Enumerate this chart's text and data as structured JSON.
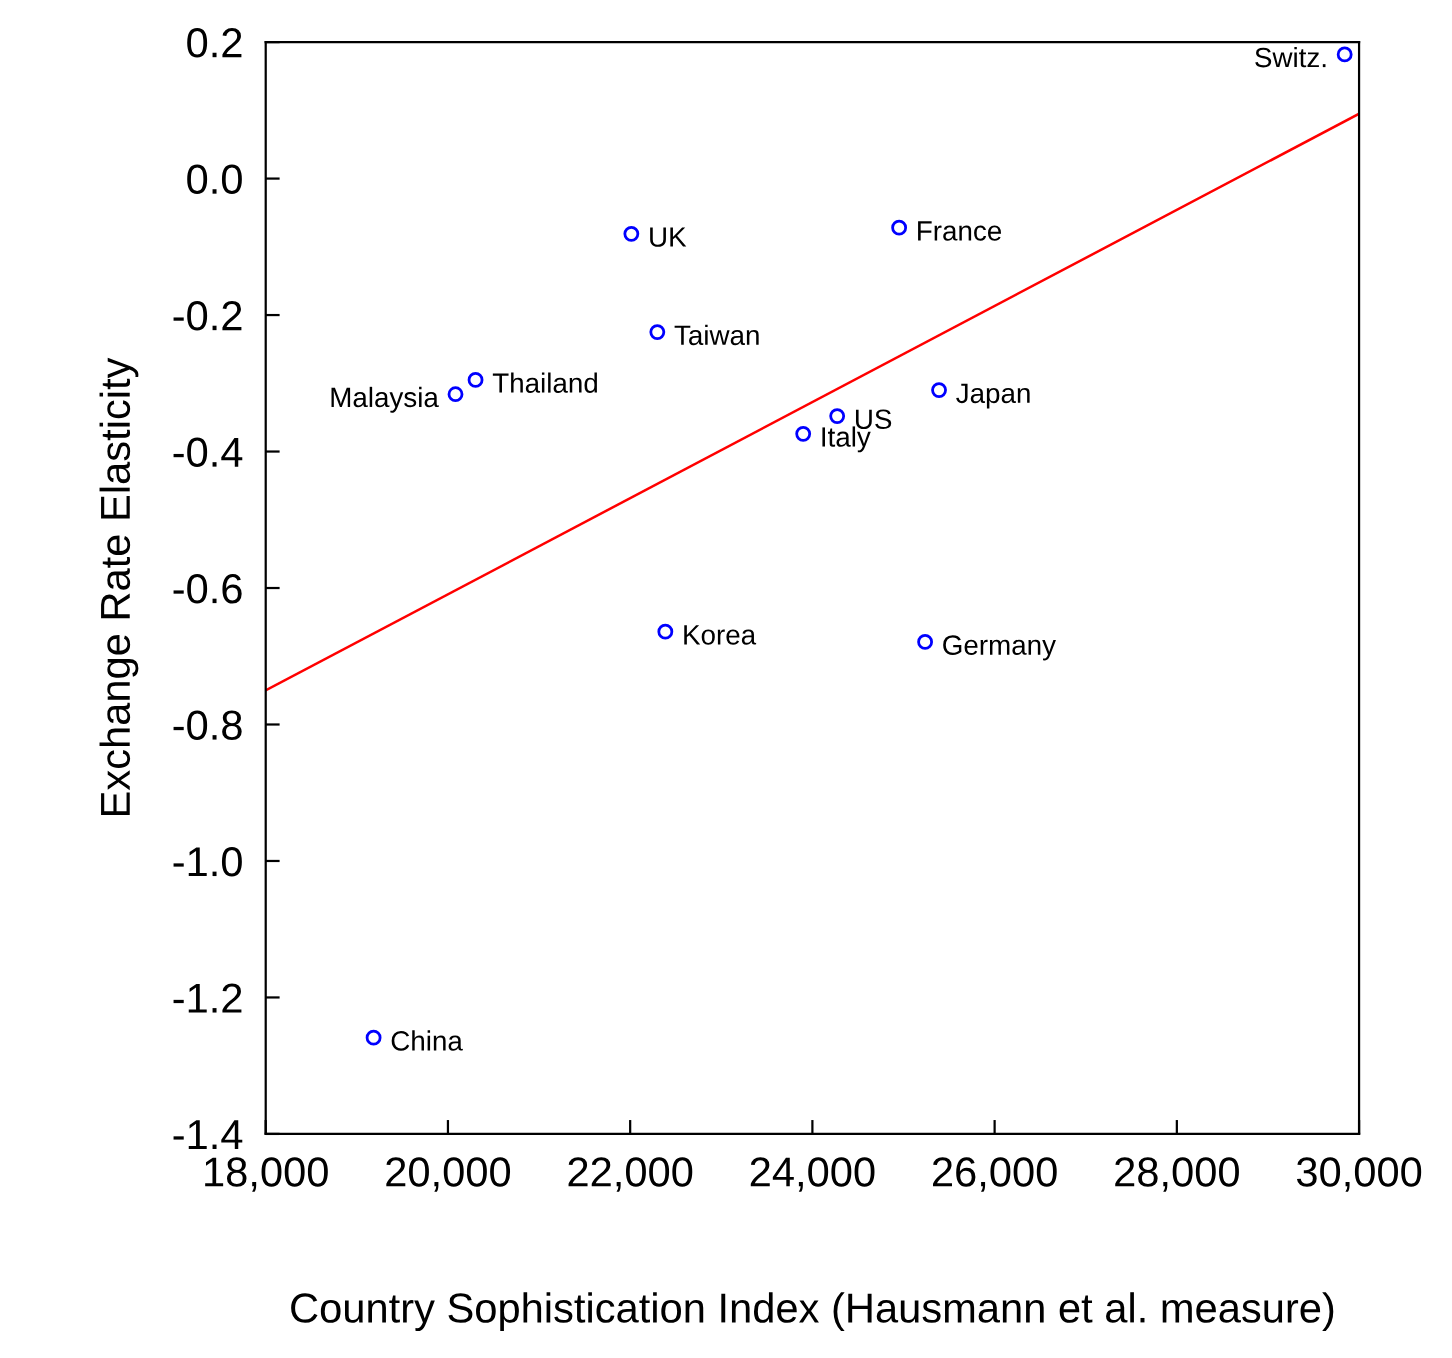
{
  "chart_data": {
    "type": "scatter",
    "xlabel": "Country Sophistication Index (Hausmann et al. measure)",
    "ylabel": "Exchange Rate Elasticity",
    "x": [
      29842,
      24952,
      22013,
      22298,
      20303,
      20083,
      25390,
      24272,
      23899,
      22386,
      25237,
      19184
    ],
    "series": [
      {
        "color": "#0000ff",
        "marker": "circle",
        "values": [
          0.182,
          -0.072,
          -0.081,
          -0.225,
          -0.295,
          -0.316,
          -0.31,
          -0.348,
          -0.374,
          -0.664,
          -0.679,
          -1.259
        ]
      },
      {
        "type": "line",
        "color": "#ff0000",
        "x": [
          18000,
          30000
        ],
        "values": [
          -0.75,
          0.095
        ]
      }
    ],
    "annotations": [
      {
        "text": "Switz.",
        "x": 29842,
        "y": 0.182
      },
      {
        "text": "France",
        "x": 24952,
        "y": -0.072
      },
      {
        "text": "UK",
        "x": 22013,
        "y": -0.081
      },
      {
        "text": "Taiwan",
        "x": 22298,
        "y": -0.225
      },
      {
        "text": "Thailand",
        "x": 20303,
        "y": -0.295
      },
      {
        "text": "Malaysia",
        "x": 20083,
        "y": -0.316
      },
      {
        "text": "Japan",
        "x": 25390,
        "y": -0.31
      },
      {
        "text": "US",
        "x": 24272,
        "y": -0.348
      },
      {
        "text": "Italy",
        "x": 23899,
        "y": -0.374
      },
      {
        "text": "Korea",
        "x": 22386,
        "y": -0.664
      },
      {
        "text": "Germany",
        "x": 25237,
        "y": -0.679
      },
      {
        "text": "China",
        "x": 19184,
        "y": -1.259
      }
    ],
    "xlim": [
      18000,
      30000
    ],
    "ylim": [
      -1.4,
      0.2
    ],
    "xticks": [
      {
        "value": 18000,
        "label": "18,000"
      },
      {
        "value": 20000,
        "label": "20,000"
      },
      {
        "value": 22000,
        "label": "22,000"
      },
      {
        "value": 24000,
        "label": "24,000"
      },
      {
        "value": 26000,
        "label": "26,000"
      },
      {
        "value": 28000,
        "label": "28,000"
      },
      {
        "value": 30000,
        "label": "30,000"
      }
    ],
    "yticks": [
      0.2,
      {
        "value": 0,
        "label": "0.0"
      },
      -0.2,
      -0.4,
      -0.6,
      -0.8,
      {
        "value": -1,
        "label": "-1.0"
      },
      -1.2,
      -1.4
    ],
    "grid": false,
    "legend": false
  }
}
